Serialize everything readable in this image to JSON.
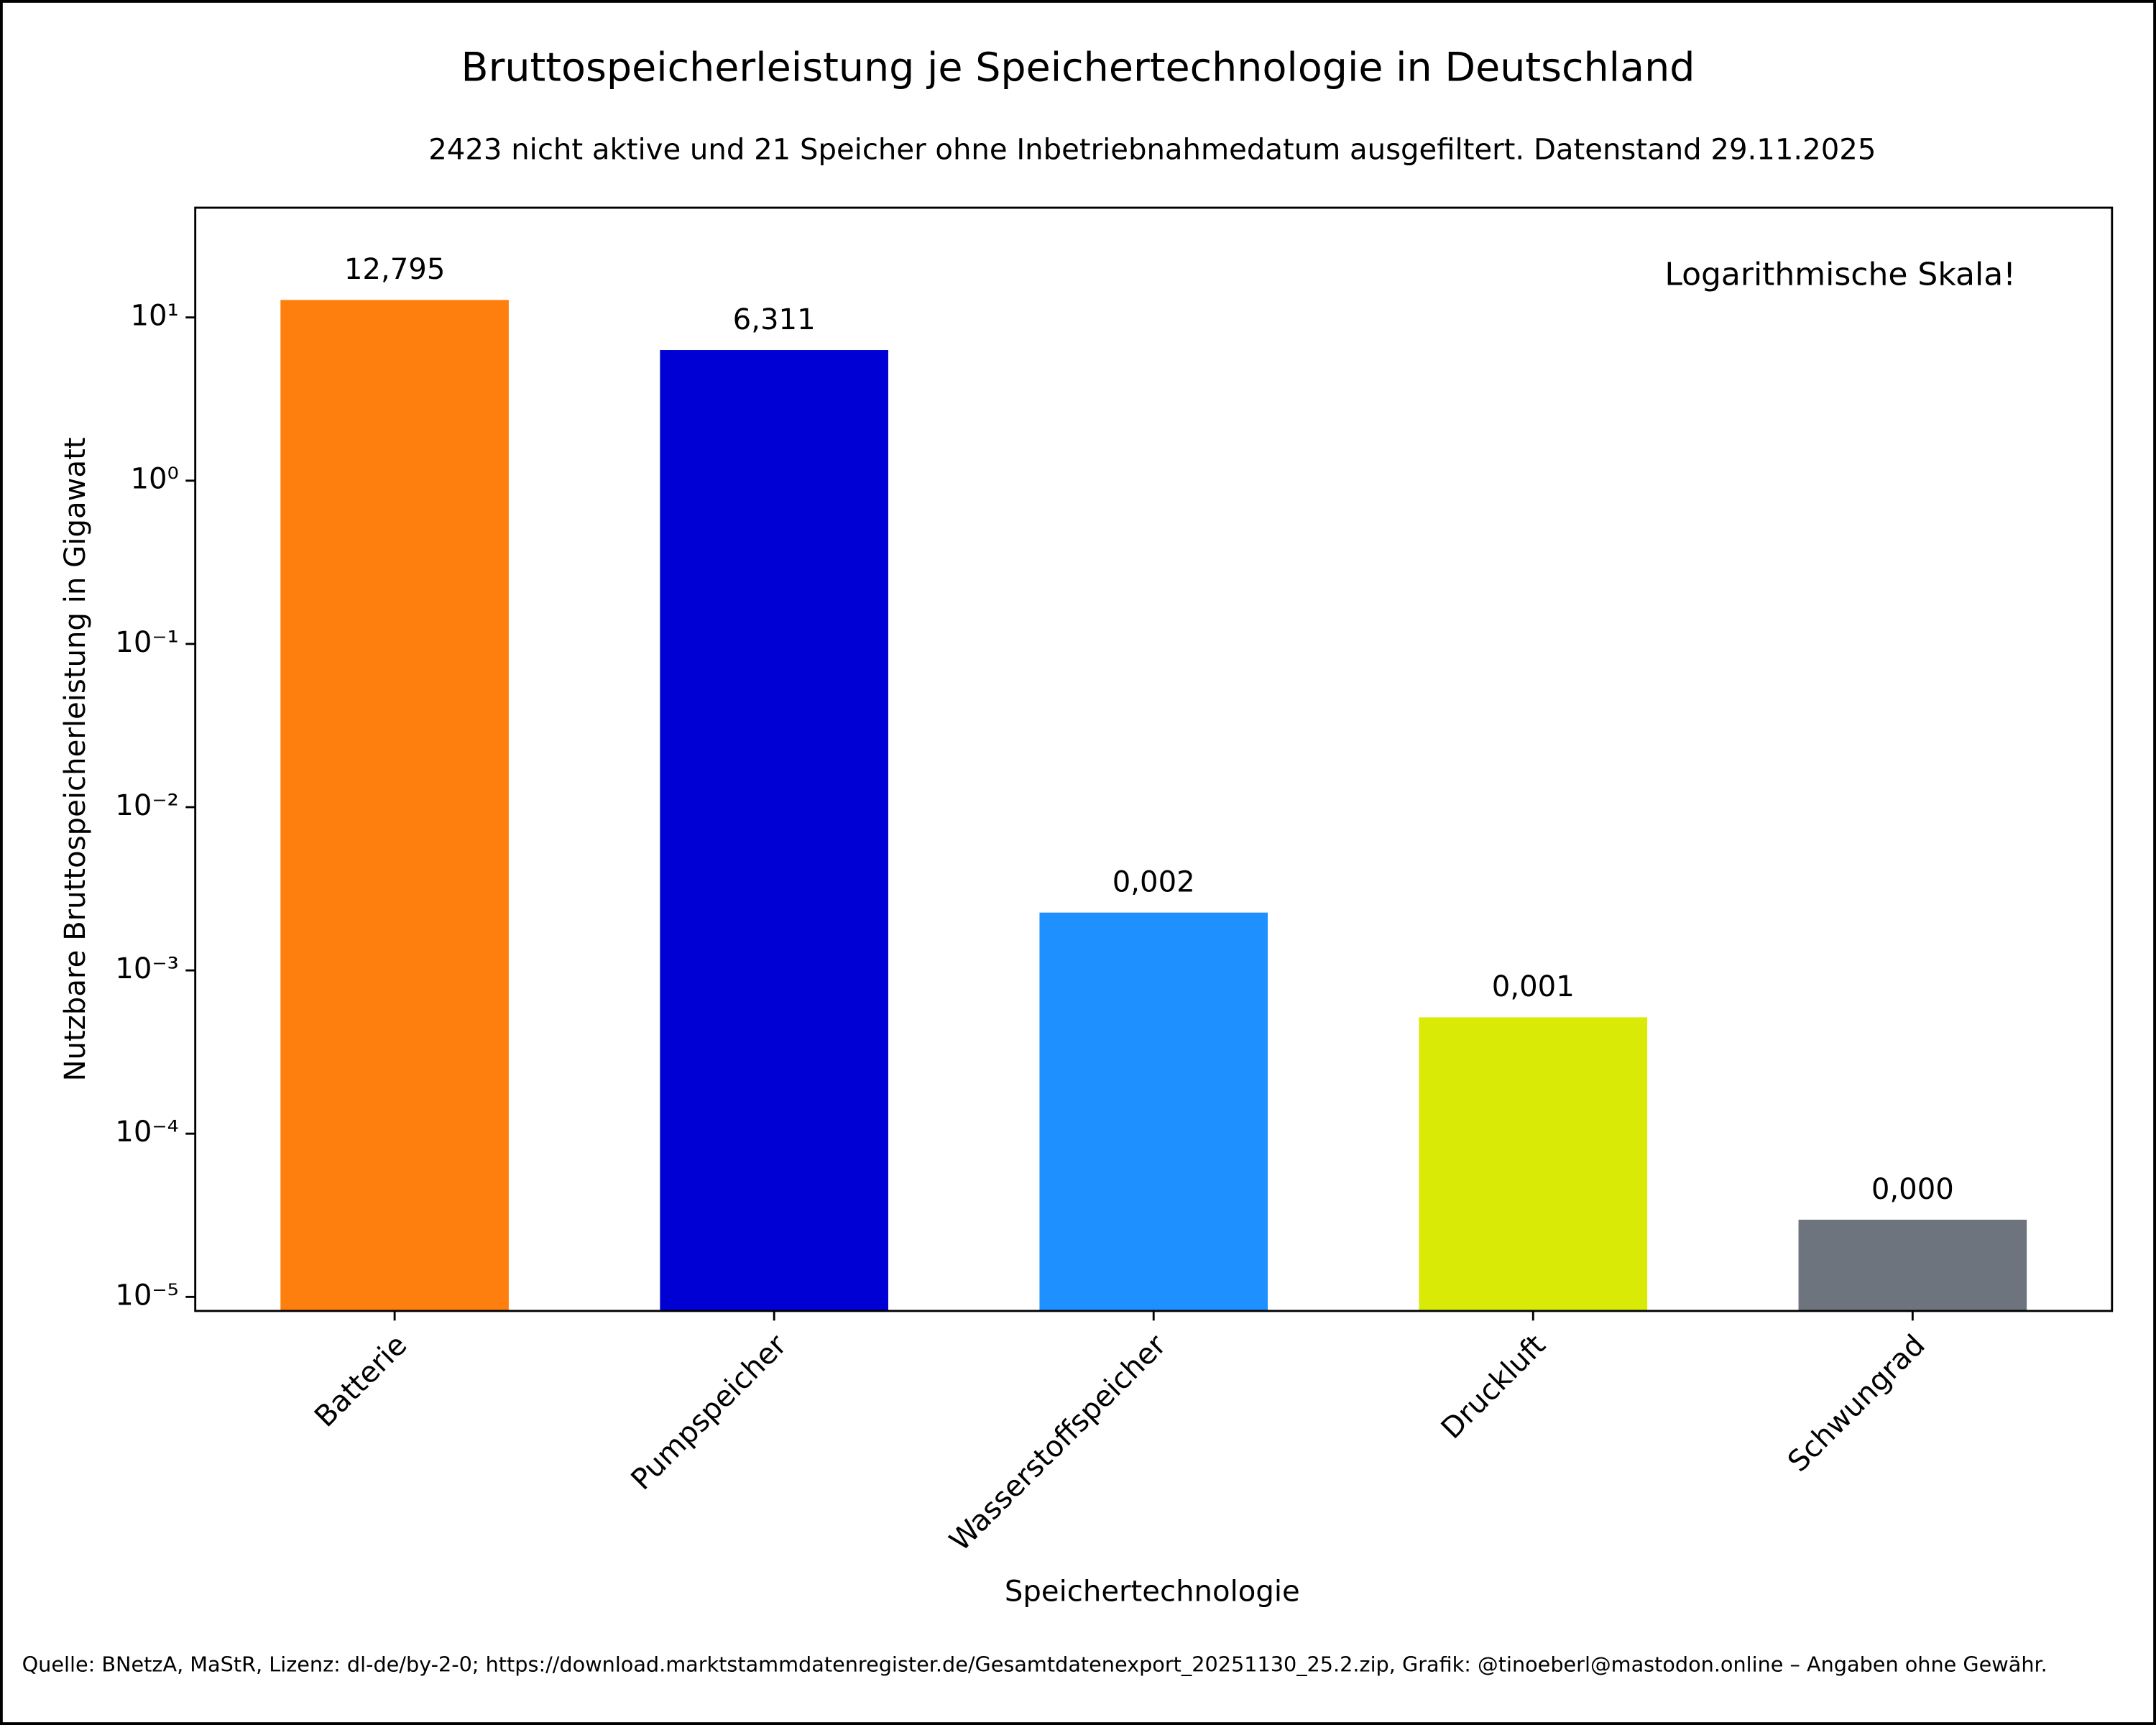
{
  "chart_data": {
    "type": "bar",
    "title": "Bruttospeicherleistung je Speichertechnologie in Deutschland",
    "subtitle": "2423 nicht aktive und 21 Speicher ohne Inbetriebnahmedatum ausgefiltert. Datenstand 29.11.2025",
    "x_label": "Speichertechnologie",
    "y_label": "Nutzbare Bruttospeicherleistung in Gigawatt",
    "annotation": "Logarithmische Skala!",
    "source": "Quelle: BNetzA, MaStR, Lizenz: dl-de/by-2-0; https://download.marktstammdatenregister.de/Gesamtdatenexport_20251130_25.2.zip, Grafik: @tinoeberl@mastodon.online – Angaben ohne Gewähr.",
    "categories": [
      "Batterie",
      "Pumpspeicher",
      "Wasserstoffspeicher",
      "Druckluft",
      "Schwungrad"
    ],
    "values": [
      12.795,
      6.311,
      0.00226,
      0.000516,
      2.97e-05
    ],
    "value_labels": [
      "12,795",
      "6,311",
      "0,002",
      "0,001",
      "0,000"
    ],
    "colors": [
      "#ff7f0e",
      "#0000d4",
      "#1e90ff",
      "#d9ea06",
      "#6d747d"
    ],
    "log_scale": true,
    "ylim": [
      8.2e-06,
      47
    ],
    "yticks": [
      {
        "value": 10,
        "label": "10¹"
      },
      {
        "value": 1,
        "label": "10⁰"
      },
      {
        "value": 0.1,
        "label": "10⁻¹"
      },
      {
        "value": 0.01,
        "label": "10⁻²"
      },
      {
        "value": 0.001,
        "label": "10⁻³"
      },
      {
        "value": 0.0001,
        "label": "10⁻⁴"
      },
      {
        "value": 1e-05,
        "label": "10⁻⁵"
      }
    ]
  }
}
